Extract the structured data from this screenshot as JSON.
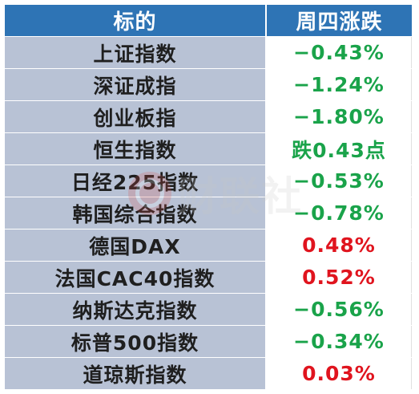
{
  "table": {
    "header": {
      "name": "标的",
      "value": "周四涨跌"
    },
    "rows": [
      {
        "name": "上证指数",
        "value": "−0.43%",
        "trend": "down"
      },
      {
        "name": "深证成指",
        "value": "−1.24%",
        "trend": "down"
      },
      {
        "name": "创业板指",
        "value": "−1.80%",
        "trend": "down"
      },
      {
        "name": "恒生指数",
        "value": "跌0.43点",
        "trend": "down"
      },
      {
        "name": "日经225指数",
        "value": "−0.53%",
        "trend": "down"
      },
      {
        "name": "韩国综合指数",
        "value": "−0.78%",
        "trend": "down"
      },
      {
        "name": "德国DAX",
        "value": "0.48%",
        "trend": "up"
      },
      {
        "name": "法国CAC40指数",
        "value": "0.52%",
        "trend": "up"
      },
      {
        "name": "纳斯达克指数",
        "value": "−0.56%",
        "trend": "down"
      },
      {
        "name": "标普500指数",
        "value": "−0.34%",
        "trend": "down"
      },
      {
        "name": "道琼斯指数",
        "value": "0.03%",
        "trend": "up"
      }
    ]
  },
  "watermark": {
    "text": "财联社"
  },
  "colors": {
    "header_bg": "#2e74b5",
    "name_bg": "#b8c2d5",
    "up": "#e0141e",
    "down": "#1aa34a"
  }
}
